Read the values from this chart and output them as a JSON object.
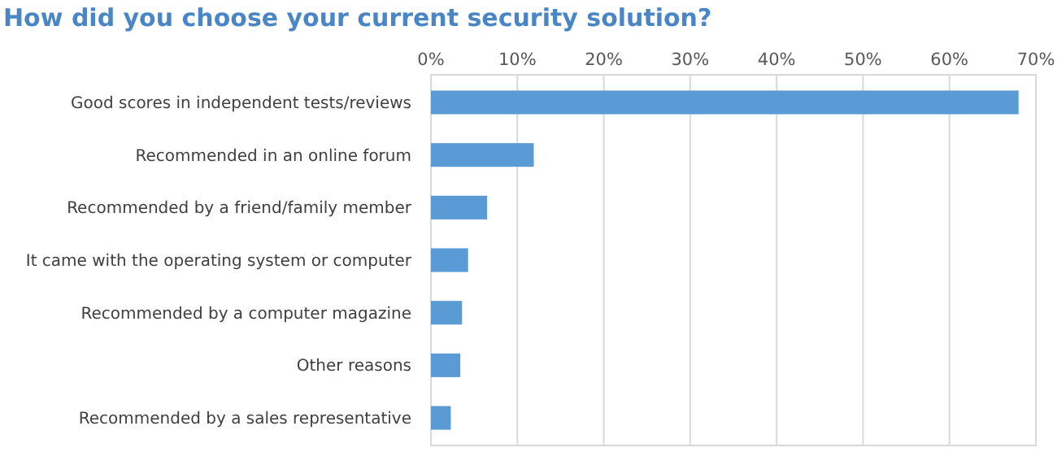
{
  "chart_data": {
    "type": "bar",
    "orientation": "horizontal",
    "title": "How did you choose your current security solution?",
    "categories": [
      "Good scores in independent tests/reviews",
      "Recommended in an online forum",
      "Recommended by a friend/family member",
      "It came with the operating system or computer",
      "Recommended by a computer magazine",
      "Other reasons",
      "Recommended by a sales representative"
    ],
    "values": [
      68,
      11.9,
      6.5,
      4.3,
      3.6,
      3.4,
      2.3
    ],
    "color": "#5b9bd5",
    "xlim": [
      0,
      70
    ],
    "xticks": [
      {
        "value": 0,
        "label": "0%"
      },
      {
        "value": 10,
        "label": "10%"
      },
      {
        "value": 20,
        "label": "20%"
      },
      {
        "value": 30,
        "label": "30%"
      },
      {
        "value": 40,
        "label": "40%"
      },
      {
        "value": 50,
        "label": "50%"
      },
      {
        "value": 60,
        "label": "60%"
      },
      {
        "value": 70,
        "label": "70%"
      }
    ],
    "grid": "x"
  }
}
